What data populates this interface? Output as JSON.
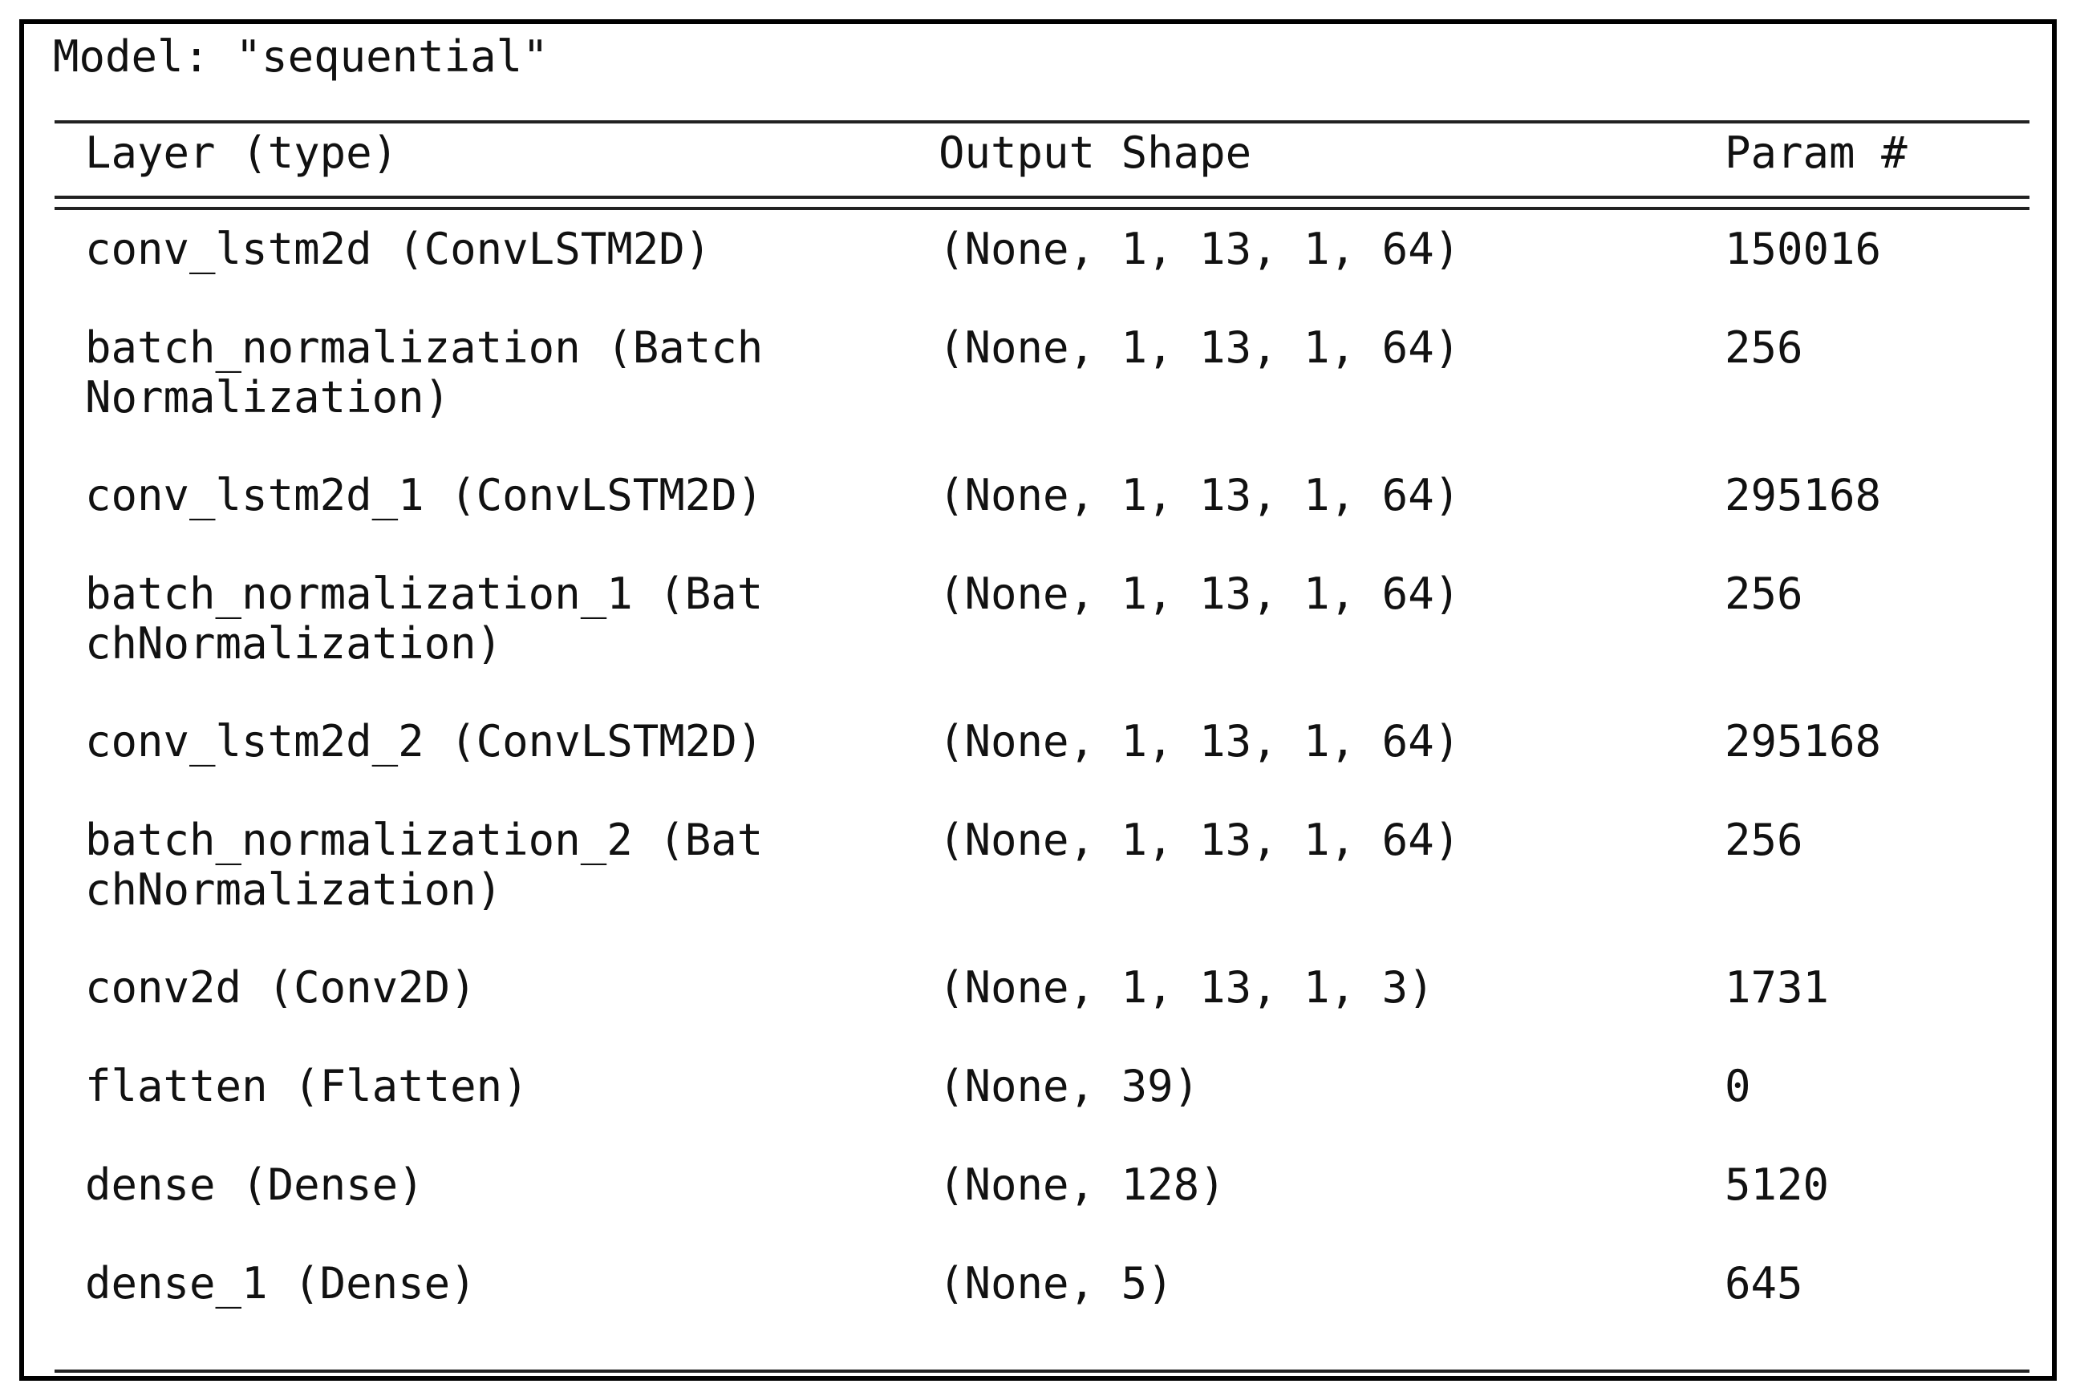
{
  "model_title": "Model: \"sequential\"",
  "headers": {
    "layer": "Layer (type)",
    "output_shape": "Output Shape",
    "params": "Param #"
  },
  "rows": [
    {
      "layer": "conv_lstm2d (ConvLSTM2D)",
      "shape": "(None, 1, 13, 1, 64)",
      "params": "150016"
    },
    {
      "layer": "batch_normalization (Batch\nNormalization)",
      "shape": "(None, 1, 13, 1, 64)",
      "params": "256"
    },
    {
      "layer": "conv_lstm2d_1 (ConvLSTM2D)",
      "shape": "(None, 1, 13, 1, 64)",
      "params": "295168"
    },
    {
      "layer": "batch_normalization_1 (Bat\nchNormalization)",
      "shape": "(None, 1, 13, 1, 64)",
      "params": "256"
    },
    {
      "layer": "conv_lstm2d_2 (ConvLSTM2D)",
      "shape": "(None, 1, 13, 1, 64)",
      "params": "295168"
    },
    {
      "layer": "batch_normalization_2 (Bat\nchNormalization)",
      "shape": "(None, 1, 13, 1, 64)",
      "params": "256"
    },
    {
      "layer": "conv2d (Conv2D)",
      "shape": "(None, 1, 13, 1, 3)",
      "params": "1731"
    },
    {
      "layer": "flatten (Flatten)",
      "shape": "(None, 39)",
      "params": "0"
    },
    {
      "layer": "dense (Dense)",
      "shape": "(None, 128)",
      "params": "5120"
    },
    {
      "layer": "dense_1 (Dense)",
      "shape": "(None, 5)",
      "params": "645"
    }
  ]
}
